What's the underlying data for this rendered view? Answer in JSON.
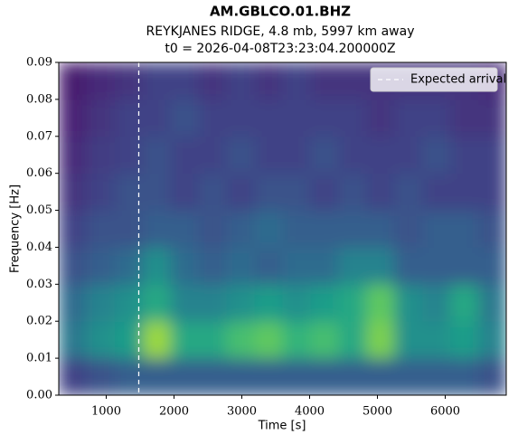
{
  "chart_data": {
    "type": "heatmap",
    "title": "AM.GBLCO.01.BHZ",
    "subtitle": "REYKJANES RIDGE, 4.8 mb, 5997 km away",
    "subtitle2": "t0 = 2026-04-08T23:23:04.200000Z",
    "xlabel": "Time [s]",
    "ylabel": "Frequency [Hz]",
    "colormap": "viridis",
    "xlim": [
      300,
      6900
    ],
    "ylim": [
      0,
      0.09
    ],
    "xticks": [
      1000,
      2000,
      3000,
      4000,
      5000,
      6000
    ],
    "yticks": [
      {
        "value": 0,
        "label": "0.00"
      },
      {
        "value": 0.01,
        "label": "0.01"
      },
      {
        "value": 0.02,
        "label": "0.02"
      },
      {
        "value": 0.03,
        "label": "0.03"
      },
      {
        "value": 0.04,
        "label": "0.04"
      },
      {
        "value": 0.05,
        "label": "0.05"
      },
      {
        "value": 0.06,
        "label": "0.06"
      },
      {
        "value": 0.07,
        "label": "0.07"
      },
      {
        "value": 0.08,
        "label": "0.08"
      },
      {
        "value": 0.09,
        "label": "0.09"
      }
    ],
    "z": [
      [
        0.2,
        0.25,
        0.3,
        0.3,
        0.3,
        0.3,
        0.3,
        0.3,
        0.3,
        0.3,
        0.3,
        0.3,
        0.3,
        0.3,
        0.3,
        0.25
      ],
      [
        0.4,
        0.5,
        0.55,
        0.85,
        0.6,
        0.6,
        0.7,
        0.75,
        0.65,
        0.7,
        0.6,
        0.8,
        0.5,
        0.5,
        0.55,
        0.45
      ],
      [
        0.35,
        0.45,
        0.5,
        0.6,
        0.45,
        0.45,
        0.5,
        0.55,
        0.5,
        0.55,
        0.6,
        0.75,
        0.5,
        0.45,
        0.6,
        0.4
      ],
      [
        0.25,
        0.3,
        0.35,
        0.5,
        0.35,
        0.3,
        0.35,
        0.3,
        0.35,
        0.35,
        0.45,
        0.45,
        0.3,
        0.3,
        0.3,
        0.3
      ],
      [
        0.2,
        0.25,
        0.25,
        0.3,
        0.3,
        0.25,
        0.3,
        0.35,
        0.3,
        0.3,
        0.3,
        0.3,
        0.25,
        0.3,
        0.3,
        0.25
      ],
      [
        0.15,
        0.2,
        0.25,
        0.25,
        0.2,
        0.25,
        0.2,
        0.25,
        0.25,
        0.2,
        0.25,
        0.2,
        0.25,
        0.2,
        0.2,
        0.2
      ],
      [
        0.12,
        0.18,
        0.2,
        0.25,
        0.2,
        0.2,
        0.25,
        0.2,
        0.2,
        0.25,
        0.2,
        0.2,
        0.2,
        0.25,
        0.2,
        0.2
      ],
      [
        0.1,
        0.15,
        0.2,
        0.2,
        0.25,
        0.2,
        0.2,
        0.2,
        0.2,
        0.2,
        0.2,
        0.15,
        0.2,
        0.2,
        0.15,
        0.15
      ],
      [
        0.08,
        0.12,
        0.15,
        0.2,
        0.2,
        0.15,
        0.2,
        0.15,
        0.2,
        0.15,
        0.15,
        0.15,
        0.15,
        0.15,
        0.15,
        0.12
      ]
    ],
    "expected_arrival": 1480,
    "arrival_label": "Expected arrival",
    "arrival_color": "#ffffff",
    "legend": "upper right"
  }
}
